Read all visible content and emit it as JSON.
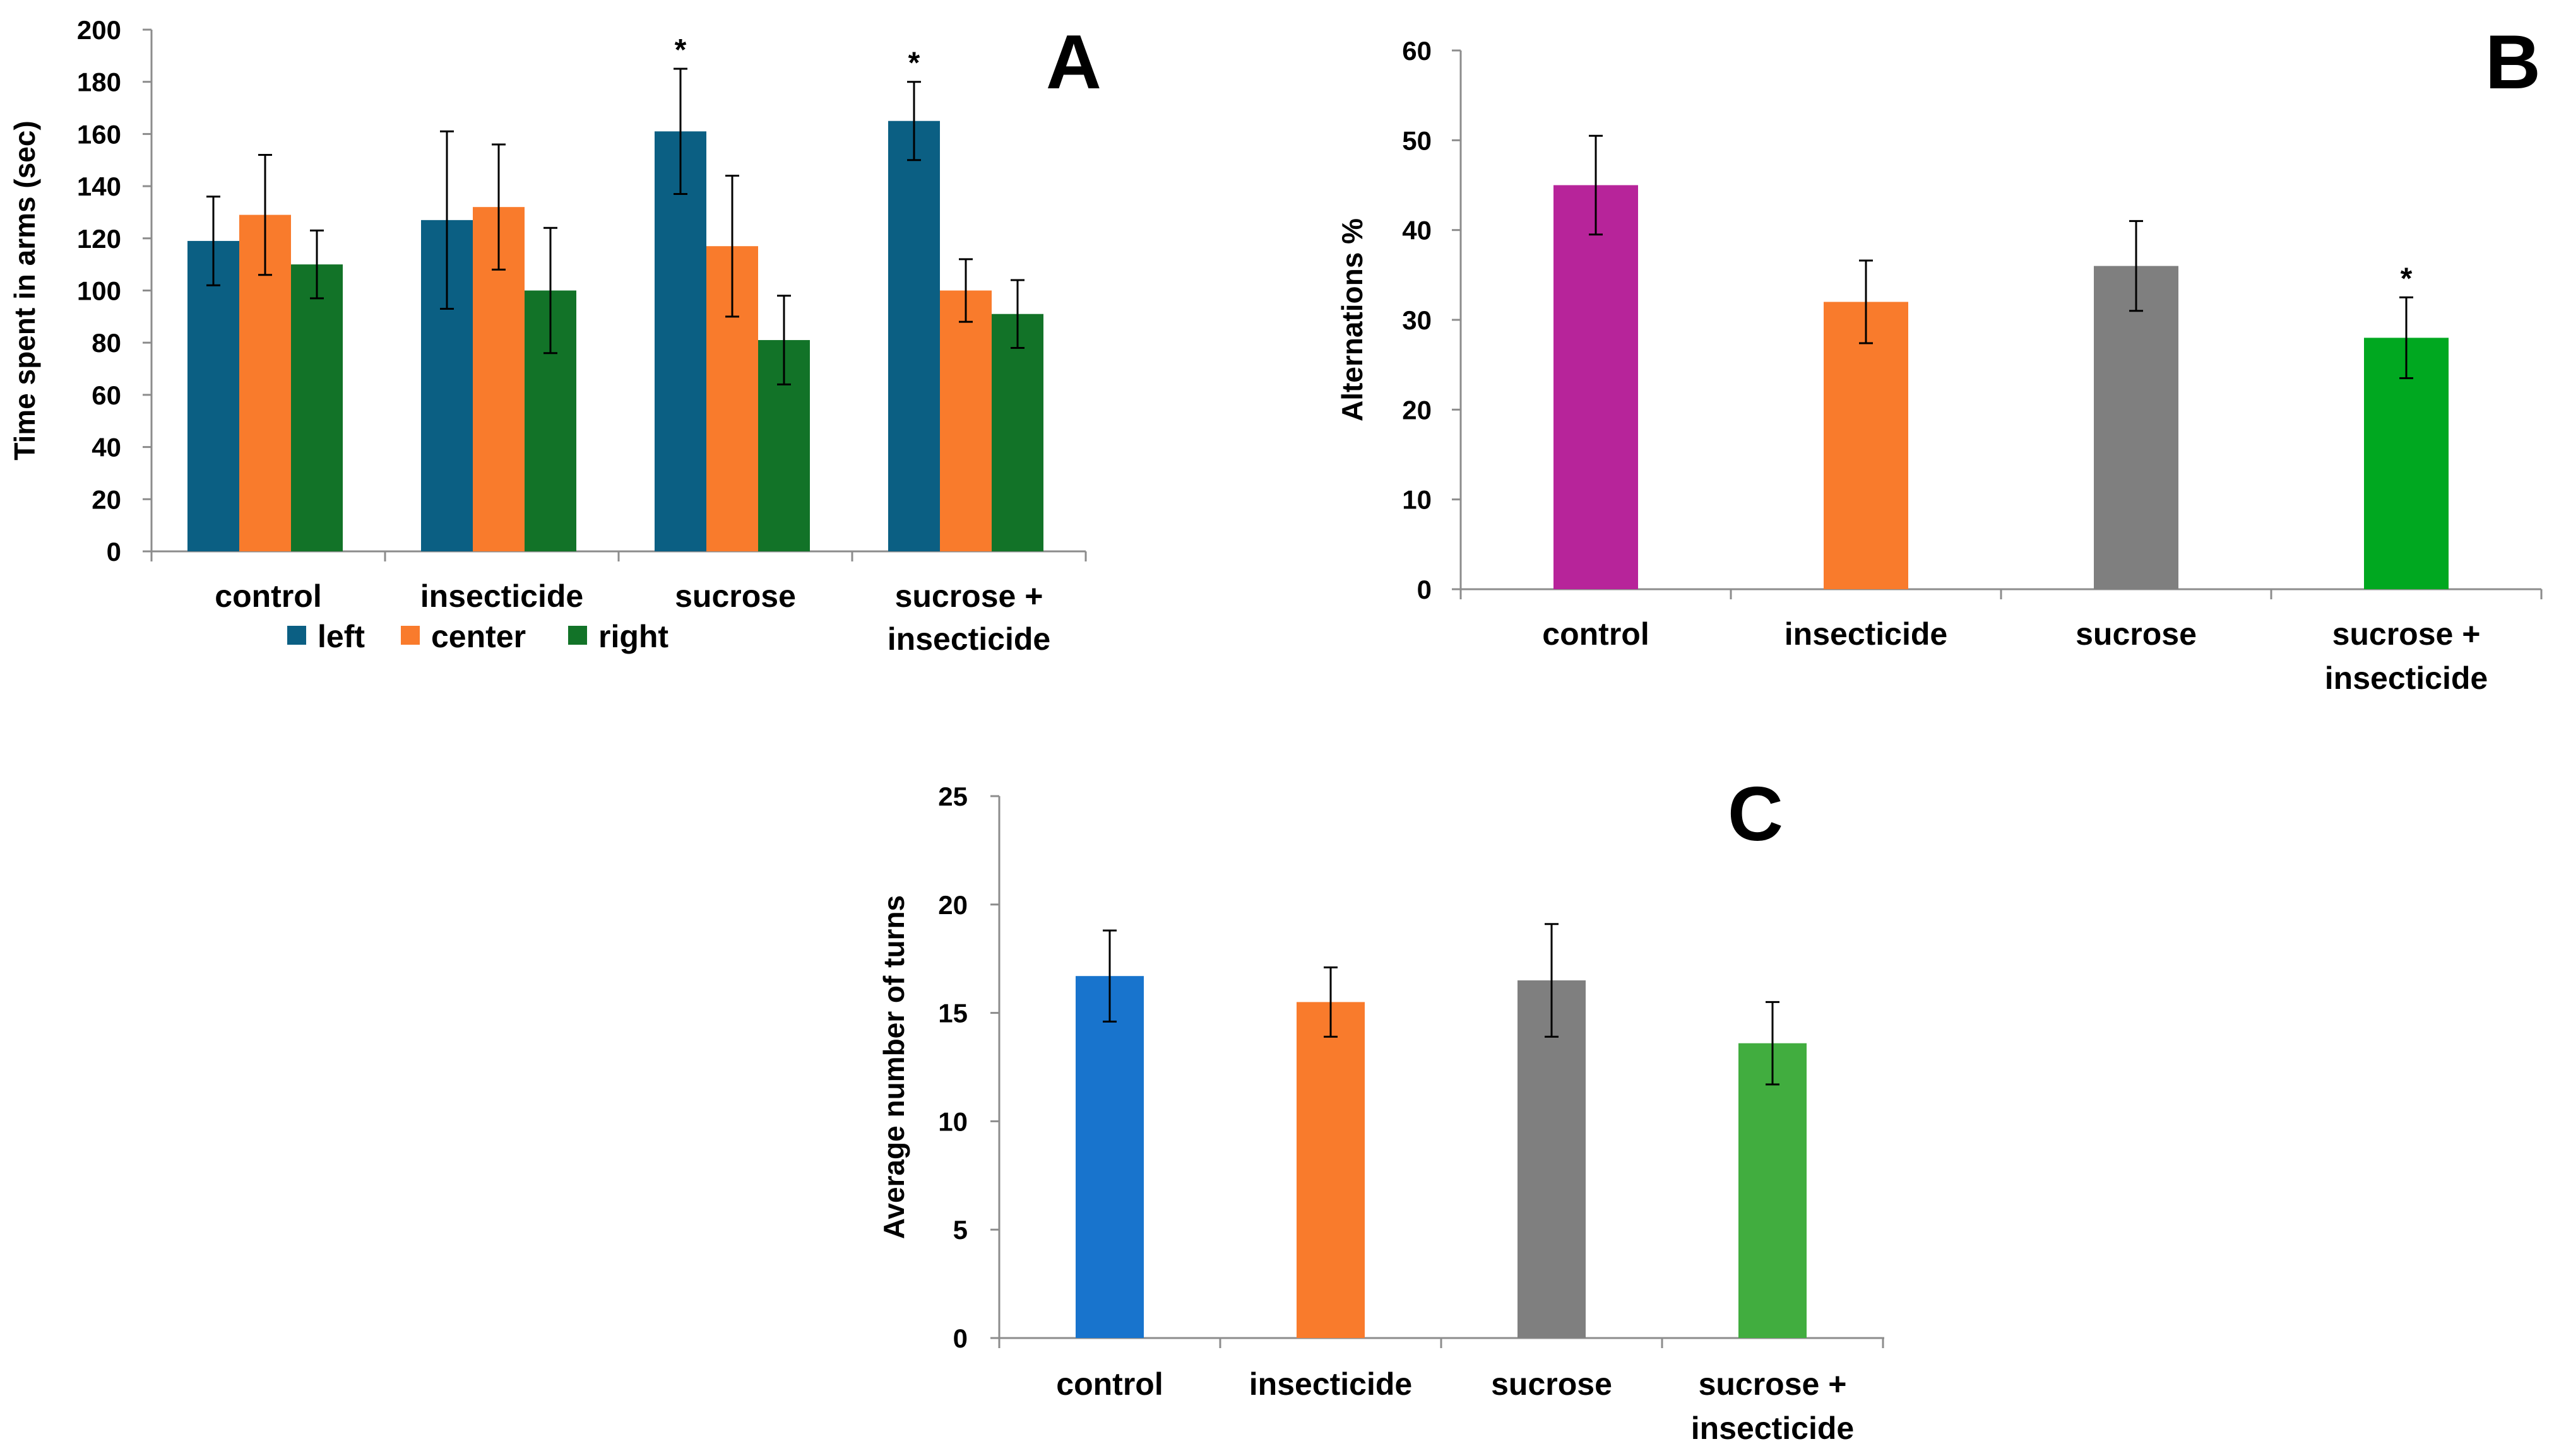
{
  "chart_data": [
    {
      "panel": "A",
      "type": "bar",
      "title": "",
      "xlabel": "",
      "ylabel": "Time spent in arms (sec)",
      "ylim": [
        0,
        200
      ],
      "yticks": [
        "0",
        "20",
        "40",
        "60",
        "80",
        "100",
        "120",
        "140",
        "160",
        "180",
        "200"
      ],
      "categories": [
        [
          "control"
        ],
        [
          "insecticide"
        ],
        [
          "sucrose"
        ],
        [
          "sucrose +",
          "insecticide"
        ]
      ],
      "series": [
        {
          "name": "left",
          "color": "#0b5f83",
          "values": [
            119,
            127,
            161,
            165
          ],
          "errors": [
            17,
            34,
            24,
            15
          ]
        },
        {
          "name": "center",
          "color": "#f97b2c",
          "values": [
            129,
            132,
            117,
            100
          ],
          "errors": [
            23,
            24,
            27,
            12
          ]
        },
        {
          "name": "right",
          "color": "#127328",
          "values": [
            110,
            100,
            81,
            91
          ],
          "errors": [
            13,
            24,
            17,
            13
          ]
        }
      ],
      "annotations": [
        {
          "text": "*",
          "category": 2,
          "series": 0
        },
        {
          "text": "*",
          "category": 3,
          "series": 0
        }
      ],
      "legend_position": "bottom"
    },
    {
      "panel": "B",
      "type": "bar",
      "title": "",
      "xlabel": "",
      "ylabel": "Alternations %",
      "ylim": [
        0,
        60
      ],
      "yticks": [
        "0",
        "10",
        "20",
        "30",
        "40",
        "50",
        "60"
      ],
      "categories": [
        [
          "control"
        ],
        [
          "insecticide"
        ],
        [
          "sucrose"
        ],
        [
          "sucrose +",
          "insecticide"
        ]
      ],
      "values": [
        45,
        32,
        36,
        28
      ],
      "errors": [
        5.5,
        4.6,
        5,
        4.5
      ],
      "colors": [
        "#b7249a",
        "#f97b2c",
        "#7f7f7f",
        "#00a820"
      ],
      "annotations": [
        {
          "text": "*",
          "category": 3
        }
      ]
    },
    {
      "panel": "C",
      "type": "bar",
      "title": "",
      "xlabel": "",
      "ylabel": "Average number of turns",
      "ylim": [
        0,
        25
      ],
      "yticks": [
        "0",
        "5",
        "10",
        "15",
        "20",
        "25"
      ],
      "categories": [
        [
          "control"
        ],
        [
          "insecticide"
        ],
        [
          "sucrose"
        ],
        [
          "sucrose +",
          "insecticide"
        ]
      ],
      "values": [
        16.7,
        15.5,
        16.5,
        13.6
      ],
      "errors": [
        2.1,
        1.6,
        2.6,
        1.9
      ],
      "colors": [
        "#1874cd",
        "#f97b2c",
        "#7f7f7f",
        "#41ad3f"
      ],
      "annotations": []
    }
  ]
}
